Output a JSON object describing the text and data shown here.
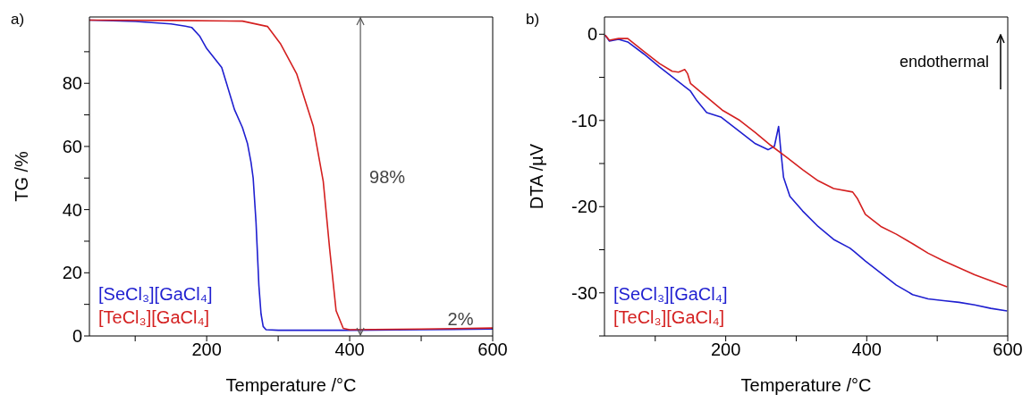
{
  "chart_data": [
    {
      "type": "line",
      "title": "a)",
      "xlabel": "Temperature /°C",
      "ylabel": "TG /%",
      "xlim": [
        36,
        600
      ],
      "ylim": [
        0,
        101
      ],
      "xticks": [
        {
          "value": 100,
          "label": null
        },
        200,
        {
          "value": 300,
          "label": null
        },
        400,
        {
          "value": 500,
          "label": null
        },
        600
      ],
      "yticks": [
        0,
        {
          "value": 10,
          "label": null
        },
        20,
        {
          "value": 30,
          "label": null
        },
        40,
        {
          "value": 50,
          "label": null
        },
        60,
        {
          "value": 70,
          "label": null
        },
        80,
        {
          "value": 90,
          "label": null
        }
      ],
      "legend": "bottom left",
      "line_style": "solid",
      "ref_lines": [
        {
          "axis": "x",
          "value": 415,
          "color": "#555555"
        }
      ],
      "annotations": [
        "98%",
        {
          "text": "2%",
          "x": 555,
          "y": 2.5
        }
      ],
      "series": [
        {
          "name": "[SeCl₃][GaCl₄]",
          "color": "#1f1fd0",
          "x": [
            36,
            100,
            150,
            170,
            179,
            190,
            200,
            221,
            239,
            250,
            257,
            262,
            265,
            267,
            269,
            271,
            273,
            276,
            279,
            283,
            300,
            400,
            500,
            600
          ],
          "values": [
            100,
            99.6,
            98.8,
            98.1,
            97.7,
            95,
            91,
            85,
            71.6,
            66,
            61,
            55,
            50,
            43,
            36,
            26,
            16,
            7,
            3,
            2,
            1.8,
            1.8,
            2,
            2.2
          ]
        },
        {
          "name": "[TeCl₃][GaCl₄]",
          "color": "#d42020",
          "x": [
            36,
            150,
            250,
            285,
            303,
            326,
            349,
            363,
            372,
            381,
            391,
            400,
            500,
            600
          ],
          "values": [
            100,
            99.9,
            99.7,
            98,
            92.6,
            82.9,
            66.5,
            49,
            27.5,
            8,
            2.4,
            2,
            2.2,
            2.5
          ]
        }
      ]
    },
    {
      "type": "line",
      "title": "b)",
      "xlabel": "Temperature /°C",
      "ylabel": "DTA /µV",
      "xlim": [
        28,
        600
      ],
      "ylim": [
        -35,
        2
      ],
      "xticks": [
        {
          "value": 100,
          "label": null
        },
        200,
        {
          "value": 300,
          "label": null
        },
        400,
        {
          "value": 500,
          "label": null
        },
        600
      ],
      "yticks": [
        {
          "value": -35,
          "label": null
        },
        -30,
        {
          "value": -25,
          "label": null
        },
        -20,
        {
          "value": -15,
          "label": null
        },
        -10,
        {
          "value": -5,
          "label": null
        },
        0
      ],
      "legend": "bottom left",
      "line_style": "solid",
      "annotations": [
        "endothermal"
      ],
      "series": [
        {
          "name": "[SeCl₃][GaCl₄]",
          "color": "#1f1fd0",
          "x": [
            28.9,
            35,
            48,
            61,
            84,
            106,
            128,
            150,
            159,
            173,
            193,
            220,
            242,
            260,
            269,
            275,
            278,
            282,
            291,
            309,
            331,
            353,
            376,
            382,
            398,
            420,
            442,
            465,
            487,
            509,
            531,
            553,
            576,
            599
          ],
          "values": [
            -0.1,
            -0.8,
            -0.6,
            -0.9,
            -2.3,
            -3.8,
            -5.2,
            -6.6,
            -7.7,
            -9.1,
            -9.6,
            -11.3,
            -12.7,
            -13.4,
            -13,
            -10.7,
            -13.4,
            -16.6,
            -18.8,
            -20.5,
            -22.3,
            -23.8,
            -24.8,
            -25.2,
            -26.3,
            -27.7,
            -29.1,
            -30.2,
            -30.7,
            -30.9,
            -31.1,
            -31.4,
            -31.8,
            -32.1
          ]
        },
        {
          "name": "[TeCl₃][GaCl₄]",
          "color": "#d42020",
          "x": [
            28.9,
            35,
            48,
            61,
            84,
            106,
            124,
            133,
            142,
            146,
            150,
            173,
            195,
            220,
            242,
            264,
            287,
            309,
            331,
            353,
            380,
            387,
            398,
            420,
            442,
            465,
            487,
            509,
            531,
            553,
            576,
            599
          ],
          "values": [
            -0.1,
            -0.7,
            -0.5,
            -0.5,
            -2,
            -3.4,
            -4.3,
            -4.4,
            -4.1,
            -4.6,
            -5.7,
            -7.3,
            -8.8,
            -10,
            -11.4,
            -12.9,
            -14.3,
            -15.7,
            -17,
            -17.9,
            -18.3,
            -19.1,
            -20.9,
            -22.3,
            -23.2,
            -24.3,
            -25.4,
            -26.3,
            -27.1,
            -27.9,
            -28.6,
            -29.3
          ]
        }
      ]
    }
  ]
}
